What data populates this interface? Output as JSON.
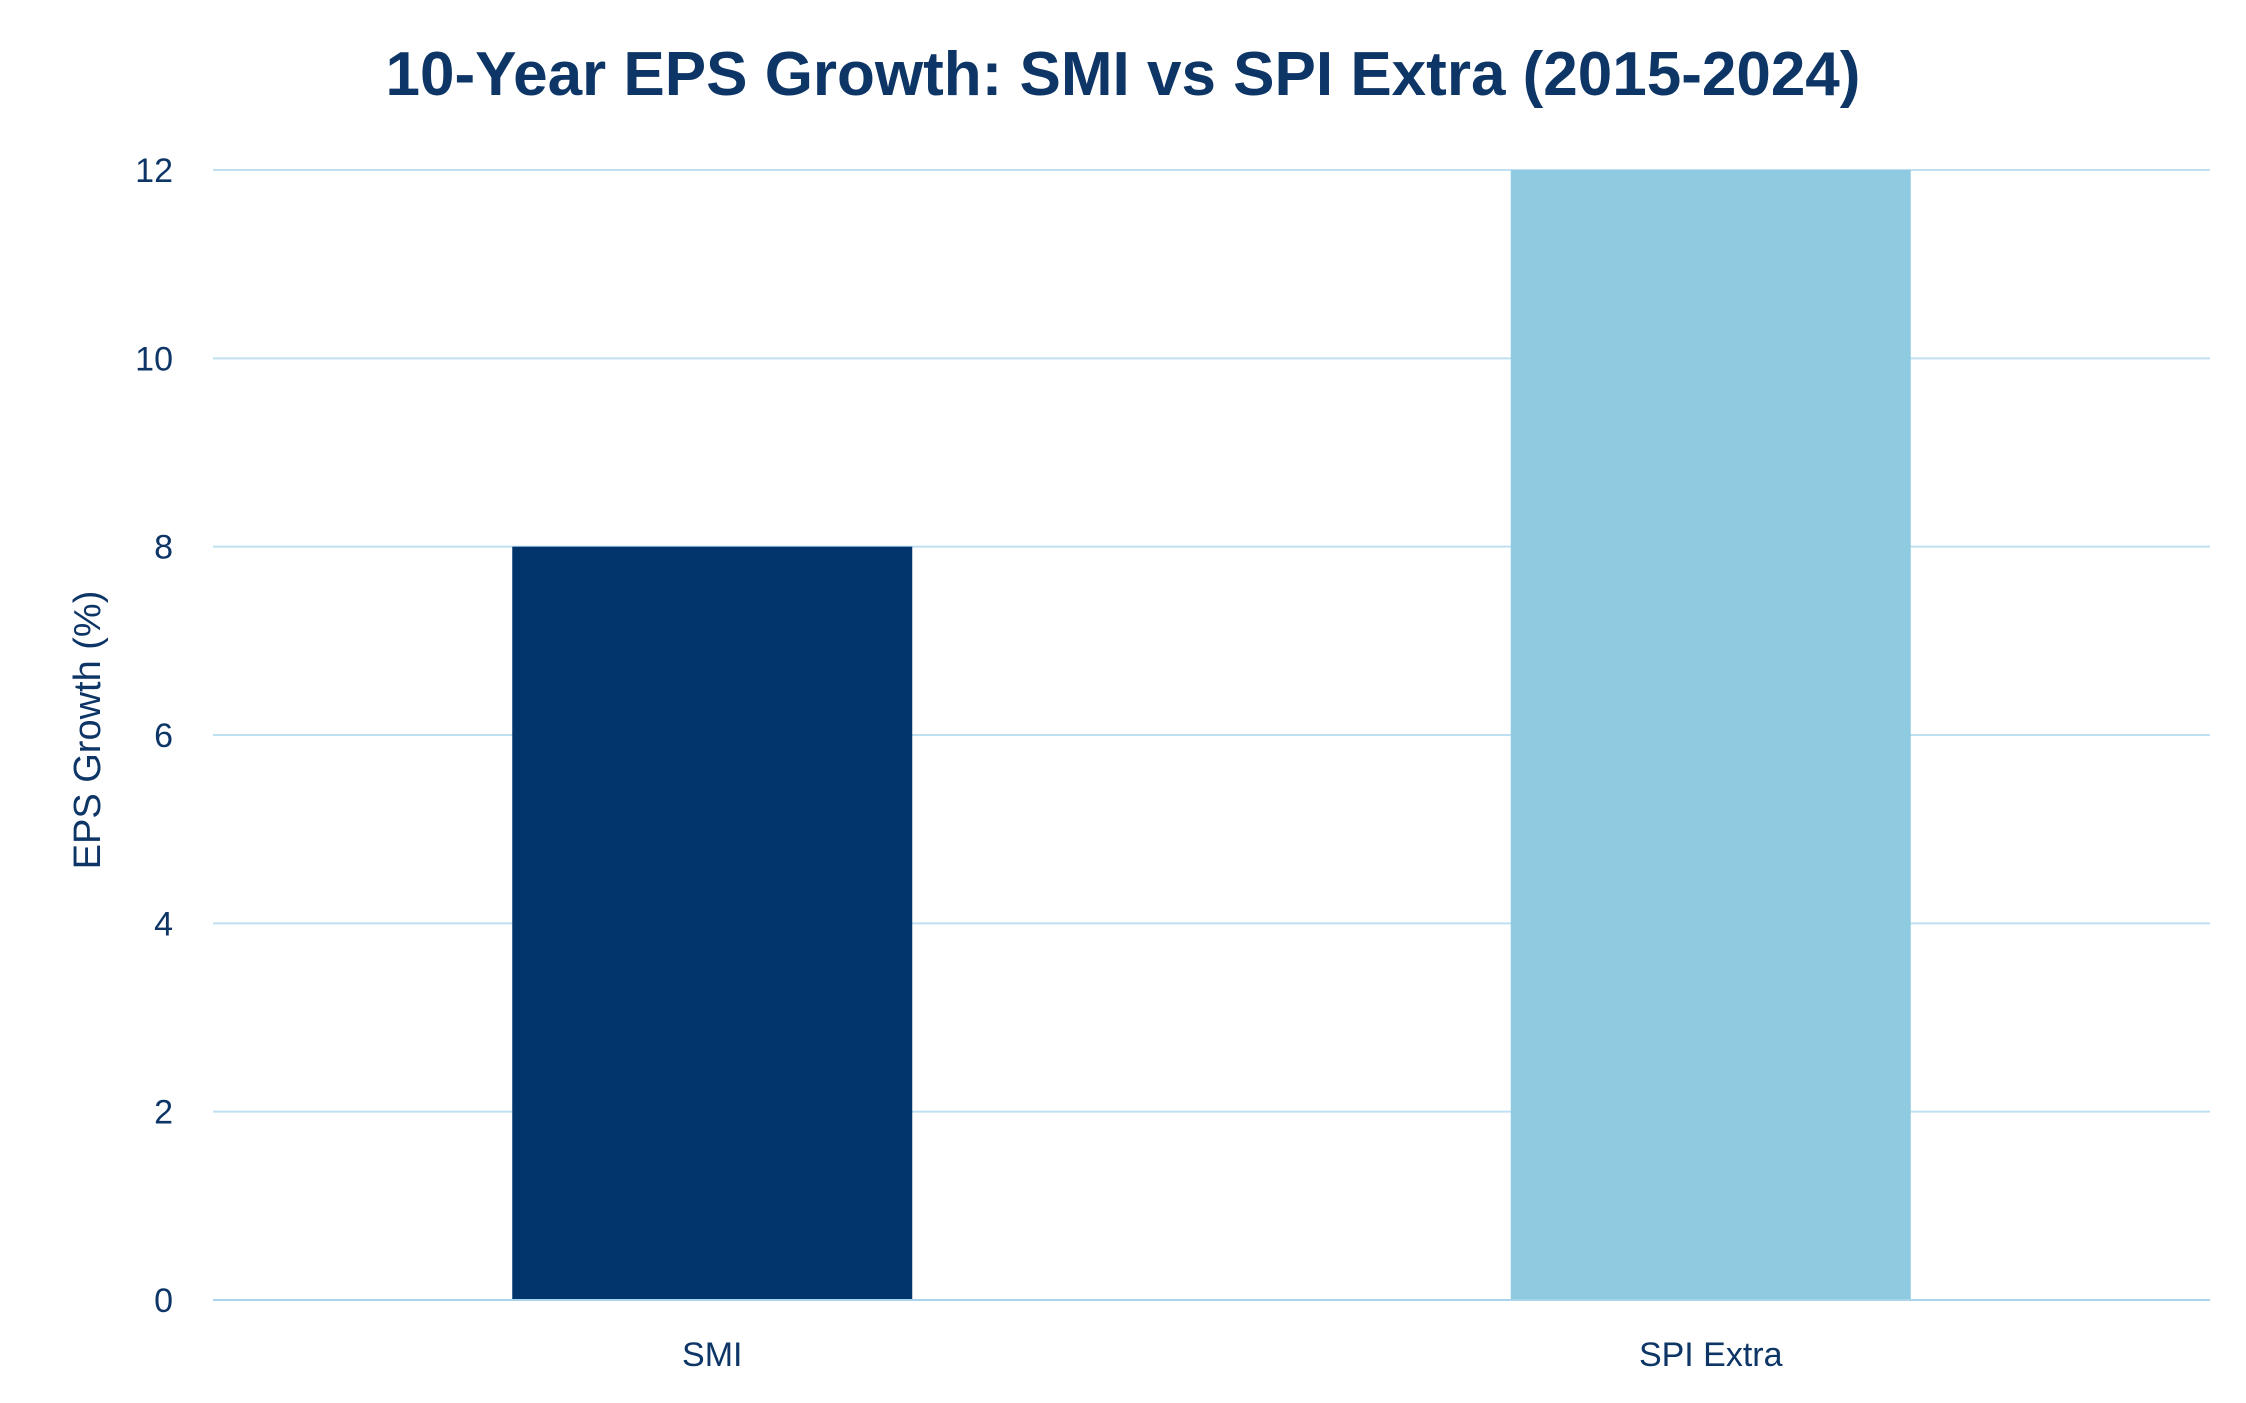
{
  "colors": {
    "text": "#0d3566",
    "grid": "#bfe0f2",
    "baseline": "#a9d4ec",
    "background": "#ffffff"
  },
  "chart_data": {
    "type": "bar",
    "title": "10-Year EPS Growth: SMI vs SPI Extra (2015-2024)",
    "xlabel": "",
    "ylabel": "EPS Growth (%)",
    "categories": [
      "SMI",
      "SPI Extra"
    ],
    "values": [
      8,
      12
    ],
    "bar_colors": [
      "#02356b",
      "#8ecbe0"
    ],
    "ylim": [
      0,
      12
    ],
    "yticks": [
      0,
      2,
      4,
      6,
      8,
      10,
      12
    ],
    "grid": true,
    "legend": "none"
  }
}
